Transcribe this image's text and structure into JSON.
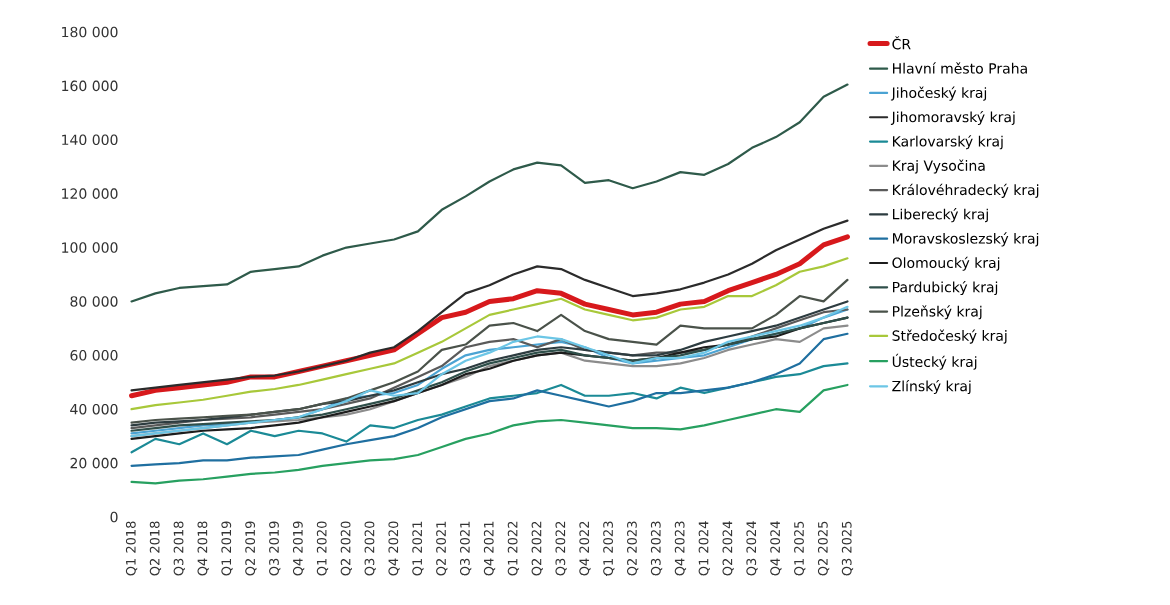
{
  "chart_data": {
    "type": "line",
    "categories": [
      "Q1 2018",
      "Q2 2018",
      "Q3 2018",
      "Q4 2018",
      "Q1 2019",
      "Q2 2019",
      "Q3 2019",
      "Q4 2019",
      "Q1 2020",
      "Q2 2020",
      "Q3 2020",
      "Q4 2020",
      "Q1 2021",
      "Q2 2021",
      "Q3 2021",
      "Q4 2021",
      "Q1 2022",
      "Q2 2022",
      "Q3 2022",
      "Q4 2022",
      "Q1 2023",
      "Q2 2023",
      "Q3 2023",
      "Q4 2023",
      "Q1 2024",
      "Q2 2024",
      "Q3 2024",
      "Q4 2024",
      "Q1 2025",
      "Q2 2025",
      "Q3 2025"
    ],
    "ylim": [
      0,
      180000
    ],
    "yticks": [
      {
        "value": 0,
        "label": "0"
      },
      {
        "value": 20000,
        "label": "20 000"
      },
      {
        "value": 40000,
        "label": "40 000"
      },
      {
        "value": 60000,
        "label": "60 000"
      },
      {
        "value": 80000,
        "label": "80 000"
      },
      {
        "value": 100000,
        "label": "100 000"
      },
      {
        "value": 120000,
        "label": "120 000"
      },
      {
        "value": 140000,
        "label": "140 000"
      },
      {
        "value": 160000,
        "label": "160 000"
      },
      {
        "value": 180000,
        "label": "180 000"
      }
    ],
    "grid": false,
    "legend": "right",
    "marker": "none",
    "line_style": "solid",
    "series": [
      {
        "name": "ČR",
        "color": "#d7191c",
        "values": [
          45000,
          47000,
          48000,
          49000,
          50000,
          52000,
          52000,
          54000,
          56000,
          58000,
          60000,
          62000,
          68000,
          74000,
          76000,
          80000,
          81000,
          84000,
          83000,
          79000,
          77000,
          75000,
          76000,
          79000,
          80000,
          84000,
          87000,
          90000,
          94000,
          101000,
          104000
        ]
      },
      {
        "name": "Hlavní město Praha",
        "color": "#2e5a4a",
        "values": [
          80000,
          83000,
          85000,
          85700,
          86300,
          91000,
          92000,
          93000,
          97000,
          100000,
          101500,
          103000,
          106000,
          114000,
          119000,
          124500,
          129000,
          131500,
          130500,
          124000,
          125000,
          122000,
          124500,
          128000,
          127000,
          131000,
          137000,
          141000,
          146500,
          156000,
          160500
        ]
      },
      {
        "name": "Jihočeský kraj",
        "color": "#4ba3d3",
        "values": [
          31000,
          32000,
          33000,
          34000,
          34500,
          35000,
          36000,
          37000,
          40000,
          44000,
          45000,
          46000,
          49000,
          55000,
          60000,
          62000,
          63000,
          64000,
          65000,
          63000,
          59000,
          57000,
          58000,
          59000,
          60000,
          63000,
          66000,
          68000,
          70000,
          74000,
          77000
        ]
      },
      {
        "name": "Jihomoravský kraj",
        "color": "#2b2b2b",
        "values": [
          47000,
          48000,
          49000,
          50000,
          51000,
          52000,
          52500,
          54000,
          56000,
          58000,
          61000,
          63000,
          69000,
          76000,
          83000,
          86000,
          90000,
          93000,
          92000,
          88000,
          85000,
          82000,
          83000,
          84500,
          87000,
          90000,
          94000,
          99000,
          103000,
          107000,
          110000
        ]
      },
      {
        "name": "Karlovarský kraj",
        "color": "#1b8a96",
        "values": [
          24000,
          29000,
          27000,
          31000,
          27000,
          32000,
          30000,
          32000,
          31000,
          28000,
          34000,
          33000,
          36000,
          38000,
          41000,
          44000,
          45000,
          46000,
          49000,
          45000,
          45000,
          46000,
          44000,
          48000,
          46000,
          48000,
          50000,
          52000,
          53000,
          56000,
          57000
        ]
      },
      {
        "name": "Kraj Vysočina",
        "color": "#8c8c8c",
        "values": [
          30000,
          31000,
          32000,
          33000,
          34000,
          35000,
          35500,
          36000,
          37000,
          38000,
          40000,
          43000,
          46000,
          49000,
          52000,
          56000,
          58000,
          60000,
          61000,
          58000,
          57000,
          56000,
          56000,
          57000,
          59000,
          62000,
          64000,
          66000,
          65000,
          70000,
          71000
        ]
      },
      {
        "name": "Královéhradecký kraj",
        "color": "#5a5a5a",
        "values": [
          33000,
          34000,
          35000,
          36000,
          36500,
          37000,
          38000,
          39000,
          40000,
          42000,
          44000,
          48000,
          52000,
          56000,
          63000,
          65000,
          66000,
          63000,
          66000,
          62000,
          61000,
          60000,
          61000,
          61000,
          62000,
          64000,
          67000,
          70000,
          73000,
          76000,
          77000
        ]
      },
      {
        "name": "Liberecký kraj",
        "color": "#2d3c40",
        "values": [
          34000,
          35000,
          35500,
          36000,
          37000,
          38000,
          39000,
          40000,
          42000,
          43000,
          45000,
          47000,
          50000,
          53000,
          55000,
          58000,
          60000,
          62000,
          63000,
          62000,
          61000,
          60000,
          60000,
          62000,
          65000,
          67000,
          69000,
          71000,
          74000,
          77000,
          80000
        ]
      },
      {
        "name": "Moravskoslezský kraj",
        "color": "#1f6fa0",
        "values": [
          19000,
          19500,
          20000,
          21000,
          21000,
          22000,
          22500,
          23000,
          25000,
          27000,
          28500,
          30000,
          33000,
          37000,
          40000,
          43000,
          44000,
          47000,
          45000,
          43000,
          41000,
          43000,
          46000,
          46000,
          47000,
          48000,
          50000,
          53000,
          57000,
          66000,
          68000
        ]
      },
      {
        "name": "Olomoucký kraj",
        "color": "#1c1c1c",
        "values": [
          29000,
          30000,
          31000,
          32000,
          32500,
          33000,
          34000,
          35000,
          37000,
          39000,
          41000,
          43000,
          46000,
          49000,
          53000,
          55000,
          58000,
          60000,
          61000,
          60000,
          59000,
          58000,
          59000,
          61000,
          63000,
          64000,
          66000,
          67000,
          70000,
          72000,
          74000
        ]
      },
      {
        "name": "Pardubický kraj",
        "color": "#2f4f4a",
        "values": [
          32000,
          33000,
          34000,
          34500,
          35000,
          35500,
          36000,
          37000,
          38000,
          40000,
          42000,
          44000,
          47000,
          50000,
          54000,
          57000,
          59000,
          61000,
          62000,
          60000,
          59000,
          58000,
          59000,
          60000,
          62000,
          64000,
          66000,
          68000,
          70000,
          72000,
          74000
        ]
      },
      {
        "name": "Plzeňský kraj",
        "color": "#4a524a",
        "values": [
          35000,
          36000,
          36500,
          37000,
          37500,
          38000,
          39000,
          40000,
          42000,
          44000,
          47000,
          50000,
          54000,
          62000,
          64000,
          71000,
          72000,
          69000,
          75000,
          69000,
          66000,
          65000,
          64000,
          71000,
          70000,
          70000,
          70000,
          75000,
          82000,
          80000,
          88000
        ]
      },
      {
        "name": "Středočeský kraj",
        "color": "#a8c83a",
        "values": [
          40000,
          41500,
          42500,
          43500,
          45000,
          46500,
          47500,
          49000,
          51000,
          53000,
          55000,
          57000,
          61000,
          65000,
          70000,
          75000,
          77000,
          79000,
          81000,
          77000,
          75000,
          73000,
          74000,
          77000,
          78000,
          82000,
          82000,
          86000,
          91000,
          93000,
          96000
        ]
      },
      {
        "name": "Ústecký kraj",
        "color": "#27a060",
        "values": [
          13000,
          12500,
          13500,
          14000,
          15000,
          16000,
          16500,
          17500,
          19000,
          20000,
          21000,
          21500,
          23000,
          26000,
          29000,
          31000,
          34000,
          35500,
          36000,
          35000,
          34000,
          33000,
          33000,
          32500,
          34000,
          36000,
          38000,
          40000,
          39000,
          47000,
          49000
        ]
      },
      {
        "name": "Zlínský kraj",
        "color": "#6cc6e6",
        "values": [
          30000,
          31000,
          32000,
          33000,
          34000,
          35000,
          36000,
          37000,
          40000,
          43000,
          47000,
          45000,
          46000,
          53000,
          58000,
          61000,
          65000,
          67000,
          66000,
          63000,
          60000,
          57000,
          59000,
          59000,
          61000,
          65000,
          67000,
          69000,
          71000,
          74000,
          78000
        ]
      }
    ]
  }
}
